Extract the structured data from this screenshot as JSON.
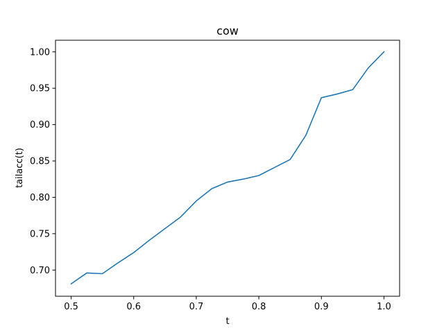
{
  "chart_data": {
    "type": "line",
    "title": "cow",
    "xlabel": "t",
    "ylabel": "tailacc(t)",
    "xlim": [
      0.475,
      1.025
    ],
    "ylim": [
      0.664,
      1.016
    ],
    "xticks": [
      0.5,
      0.6,
      0.7,
      0.8,
      0.9,
      1.0
    ],
    "xtick_labels": [
      "0.5",
      "0.6",
      "0.7",
      "0.8",
      "0.9",
      "1.0"
    ],
    "yticks": [
      0.7,
      0.75,
      0.8,
      0.85,
      0.9,
      0.95,
      1.0
    ],
    "ytick_labels": [
      "0.70",
      "0.75",
      "0.80",
      "0.85",
      "0.90",
      "0.95",
      "1.00"
    ],
    "grid": false,
    "series": [
      {
        "color": "#1f77b4",
        "x": [
          0.5,
          0.525,
          0.55,
          0.575,
          0.6,
          0.625,
          0.65,
          0.675,
          0.7,
          0.725,
          0.75,
          0.775,
          0.8,
          0.825,
          0.85,
          0.875,
          0.9,
          0.925,
          0.95,
          0.975,
          1.0
        ],
        "y": [
          0.681,
          0.696,
          0.695,
          0.71,
          0.724,
          0.741,
          0.757,
          0.773,
          0.795,
          0.812,
          0.821,
          0.825,
          0.83,
          0.841,
          0.852,
          0.885,
          0.937,
          0.942,
          0.948,
          0.978,
          1.0
        ]
      }
    ]
  }
}
